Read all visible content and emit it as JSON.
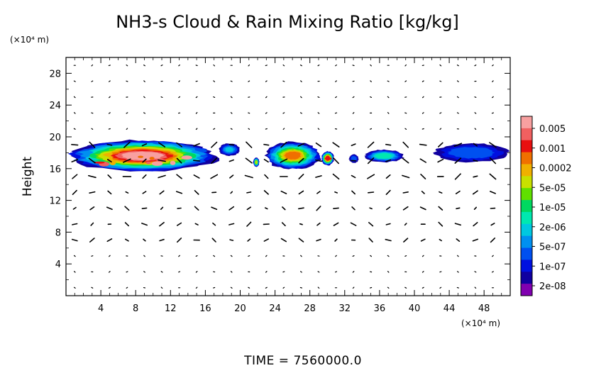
{
  "chart_data": {
    "type": "heatmap",
    "title": "NH3-s Cloud & Rain Mixing Ratio [kg/kg]",
    "ylabel": "Height",
    "xlabel": "",
    "x_unit": "(×10⁴ m)",
    "y_unit": "(×10⁴ m)",
    "time_label": "TIME = 7560000.0",
    "xlim": [
      0,
      51
    ],
    "ylim": [
      0,
      30
    ],
    "x_ticks": [
      "4",
      "8",
      "12",
      "16",
      "20",
      "24",
      "28",
      "32",
      "36",
      "40",
      "44",
      "48"
    ],
    "x_tick_values": [
      4,
      8,
      12,
      16,
      20,
      24,
      28,
      32,
      36,
      40,
      44,
      48
    ],
    "y_ticks": [
      "4",
      "8",
      "12",
      "16",
      "20",
      "24",
      "28"
    ],
    "y_tick_values": [
      4,
      8,
      12,
      16,
      20,
      24,
      28
    ],
    "colorbar": {
      "labels": [
        "0.005",
        "0.001",
        "0.0002",
        "5e-05",
        "1e-05",
        "2e-06",
        "5e-07",
        "1e-07",
        "2e-08"
      ],
      "colors": [
        "#f8a0a0",
        "#f06060",
        "#e81010",
        "#f07000",
        "#f0b000",
        "#c8e000",
        "#60e000",
        "#00d860",
        "#00e8b0",
        "#00c8e0",
        "#0090f0",
        "#0050f0",
        "#0010e0",
        "#1000a0",
        "#8000b0"
      ]
    },
    "cloud_regions": [
      {
        "x_range": [
          0,
          17.5
        ],
        "y_range": [
          15.6,
          19.6
        ],
        "max_level": "0.005"
      },
      {
        "x_range": [
          17.5,
          20.0
        ],
        "y_range": [
          17.6,
          19.2
        ],
        "max_level": "5e-07"
      },
      {
        "x_range": [
          21.5,
          22.2
        ],
        "y_range": [
          16.2,
          17.4
        ],
        "max_level": "5e-05"
      },
      {
        "x_range": [
          22.8,
          29.3
        ],
        "y_range": [
          15.9,
          19.4
        ],
        "max_level": "0.0002"
      },
      {
        "x_range": [
          29.3,
          30.8
        ],
        "y_range": [
          16.4,
          18.2
        ],
        "max_level": "0.001"
      },
      {
        "x_range": [
          32.5,
          33.6
        ],
        "y_range": [
          16.7,
          17.8
        ],
        "max_level": "1e-07"
      },
      {
        "x_range": [
          34.2,
          38.8
        ],
        "y_range": [
          16.8,
          18.4
        ],
        "max_level": "2e-06"
      },
      {
        "x_range": [
          42.2,
          51.0
        ],
        "y_range": [
          16.8,
          19.2
        ],
        "max_level": "1e-07"
      }
    ],
    "overlay": "wind vectors",
    "grid": false,
    "legend": "colorbar-right"
  }
}
